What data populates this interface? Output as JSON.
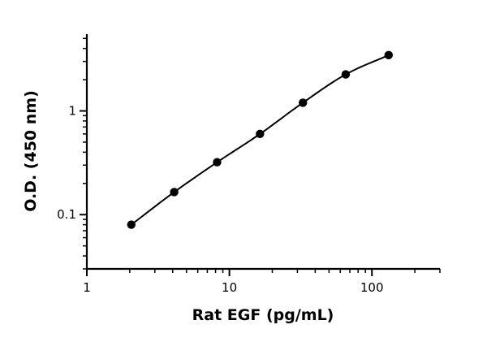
{
  "chart_data": {
    "type": "scatter",
    "title": "",
    "xlabel": "Rat EGF (pg/mL)",
    "ylabel": "O.D. (450 nm)",
    "x_scale": "log",
    "y_scale": "log",
    "xlim": [
      1,
      300
    ],
    "ylim": [
      0.03,
      5.5
    ],
    "grid": false,
    "legend": "none",
    "x_ticks": [
      {
        "value": 1,
        "label": "1"
      },
      {
        "value": 10,
        "label": "10"
      },
      {
        "value": 100,
        "label": "100"
      }
    ],
    "y_ticks": [
      {
        "value": 0.1,
        "label": "0.1"
      },
      {
        "value": 1,
        "label": "1"
      }
    ],
    "series": [
      {
        "x": [
          2.05,
          4.1,
          8.2,
          16.4,
          32.8,
          65.5,
          131
        ],
        "y": [
          0.08,
          0.165,
          0.32,
          0.6,
          1.2,
          2.25,
          3.45
        ],
        "marker_color": "#000000",
        "line_color": "#000000",
        "fit_curve": true
      }
    ]
  }
}
